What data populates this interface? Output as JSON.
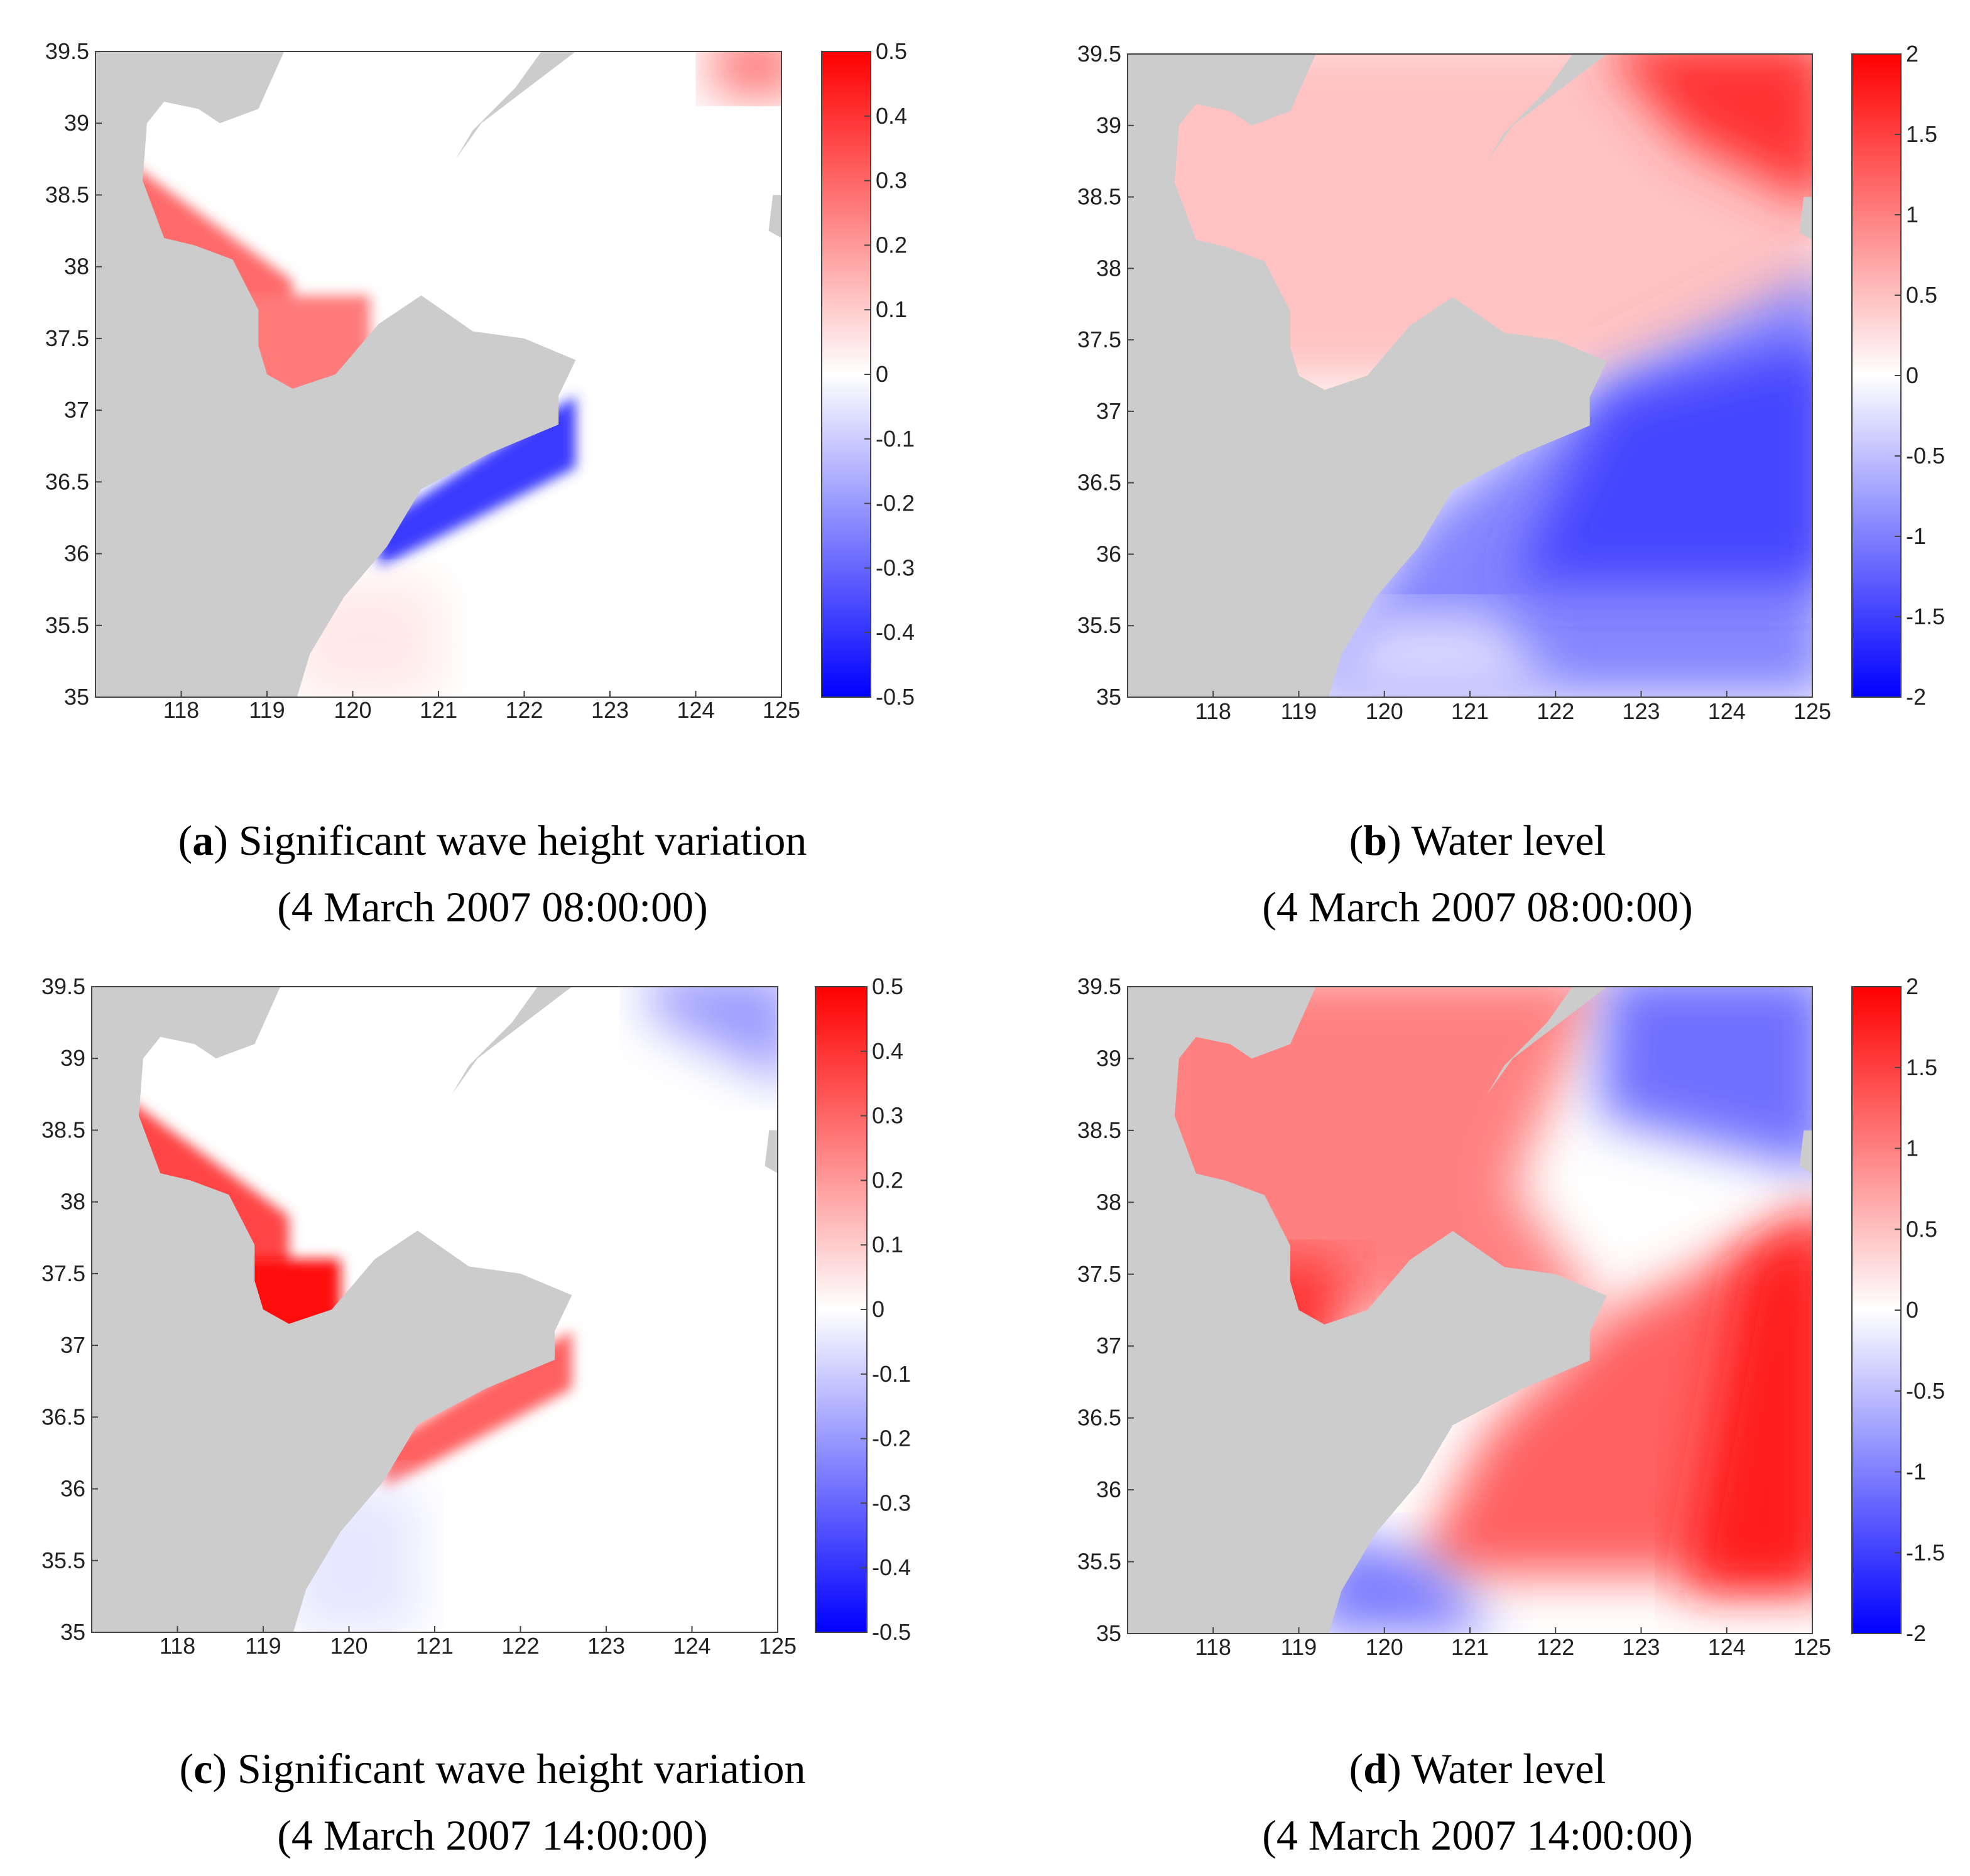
{
  "chart_data": [
    {
      "id": "a",
      "type": "heatmap",
      "variable": "Significant wave height variation",
      "letter": "a",
      "caption_title": "Significant wave height variation",
      "caption_time": "(4 March 2007 08:00:00)",
      "xlim": [
        117,
        125
      ],
      "ylim": [
        35,
        39.5
      ],
      "xticks": [
        118,
        119,
        120,
        121,
        122,
        123,
        124,
        125
      ],
      "xtick_labels": [
        "118",
        "119",
        "120",
        "121",
        "122",
        "123",
        "124",
        "125"
      ],
      "yticks": [
        35,
        35.5,
        36,
        36.5,
        37,
        37.5,
        38,
        38.5,
        39,
        39.5
      ],
      "ytick_labels": [
        "35",
        "35.5",
        "36",
        "36.5",
        "37",
        "37.5",
        "38",
        "38.5",
        "39",
        "39.5"
      ],
      "colorbar": {
        "min": -0.5,
        "max": 0.5,
        "ticks": [
          0.5,
          0.4,
          0.3,
          0.2,
          0.1,
          0,
          -0.1,
          -0.2,
          -0.3,
          -0.4,
          -0.5
        ],
        "tick_labels": [
          "0.5",
          "0.4",
          "0.3",
          "0.2",
          "0.1",
          "0",
          "-0.1",
          "-0.2",
          "-0.3",
          "-0.4",
          "-0.5"
        ],
        "colormap": "blue-white-red"
      },
      "features": [
        {
          "name": "bohai-bay-coast",
          "value": 0.22,
          "desc": "red band along western Bohai coast"
        },
        {
          "name": "laizhou-bay-coast",
          "value": 0.3,
          "desc": "red along Laizhou Bay"
        },
        {
          "name": "shandong-south-coast",
          "value": -0.4,
          "desc": "blue strip along southern Shandong coast"
        },
        {
          "name": "open-water",
          "value": 0.02,
          "desc": "near-zero elsewhere"
        }
      ]
    },
    {
      "id": "b",
      "type": "heatmap",
      "variable": "Water level",
      "letter": "b",
      "caption_title": "Water level",
      "caption_time": "(4 March 2007 08:00:00)",
      "xlim": [
        117,
        125
      ],
      "ylim": [
        35,
        39.5
      ],
      "xticks": [
        118,
        119,
        120,
        121,
        122,
        123,
        124,
        125
      ],
      "xtick_labels": [
        "118",
        "119",
        "120",
        "121",
        "122",
        "123",
        "124",
        "125"
      ],
      "yticks": [
        35,
        35.5,
        36,
        36.5,
        37,
        37.5,
        38,
        38.5,
        39,
        39.5
      ],
      "ytick_labels": [
        "35",
        "35.5",
        "36",
        "36.5",
        "37",
        "37.5",
        "38",
        "38.5",
        "39",
        "39.5"
      ],
      "colorbar": {
        "min": -2,
        "max": 2,
        "ticks": [
          2,
          1.5,
          1,
          0.5,
          0,
          -0.5,
          -1,
          -1.5,
          -2
        ],
        "tick_labels": [
          "2",
          "1.5",
          "1",
          "0.5",
          "0",
          "-0.5",
          "-1",
          "-1.5",
          "-2"
        ],
        "colormap": "blue-white-red"
      },
      "features": [
        {
          "name": "north-east-corner",
          "value": 1.8
        },
        {
          "name": "bohai-sea",
          "value": 0.6
        },
        {
          "name": "yellow-sea-south",
          "value": -1.3
        }
      ]
    },
    {
      "id": "c",
      "type": "heatmap",
      "variable": "Significant wave height variation",
      "letter": "c",
      "caption_title": "Significant wave height variation",
      "caption_time": "(4 March 2007 14:00:00)",
      "xlim": [
        117,
        125
      ],
      "ylim": [
        35,
        39.5
      ],
      "xticks": [
        118,
        119,
        120,
        121,
        122,
        123,
        124,
        125
      ],
      "xtick_labels": [
        "118",
        "119",
        "120",
        "121",
        "122",
        "123",
        "124",
        "125"
      ],
      "yticks": [
        35,
        35.5,
        36,
        36.5,
        37,
        37.5,
        38,
        38.5,
        39,
        39.5
      ],
      "ytick_labels": [
        "35",
        "35.5",
        "36",
        "36.5",
        "37",
        "37.5",
        "38",
        "38.5",
        "39",
        "39.5"
      ],
      "colorbar": {
        "min": -0.5,
        "max": 0.5,
        "ticks": [
          0.5,
          0.4,
          0.3,
          0.2,
          0.1,
          0,
          -0.1,
          -0.2,
          -0.3,
          -0.4,
          -0.5
        ],
        "tick_labels": [
          "0.5",
          "0.4",
          "0.3",
          "0.2",
          "0.1",
          "0",
          "-0.1",
          "-0.2",
          "-0.3",
          "-0.4",
          "-0.5"
        ],
        "colormap": "blue-white-red"
      },
      "features": [
        {
          "name": "bohai-bay-coast",
          "value": 0.35
        },
        {
          "name": "laizhou-bay",
          "value": 0.5
        },
        {
          "name": "shandong-south-coast",
          "value": 0.25
        },
        {
          "name": "north-east-corner",
          "value": -0.2
        }
      ]
    },
    {
      "id": "d",
      "type": "heatmap",
      "variable": "Water level",
      "letter": "d",
      "caption_title": "Water level",
      "caption_time": "(4 March 2007 14:00:00)",
      "xlim": [
        117,
        125
      ],
      "ylim": [
        35,
        39.5
      ],
      "xticks": [
        118,
        119,
        120,
        121,
        122,
        123,
        124,
        125
      ],
      "xtick_labels": [
        "118",
        "119",
        "120",
        "121",
        "122",
        "123",
        "124",
        "125"
      ],
      "yticks": [
        35,
        35.5,
        36,
        36.5,
        37,
        37.5,
        38,
        38.5,
        39,
        39.5
      ],
      "ytick_labels": [
        "35",
        "35.5",
        "36",
        "36.5",
        "37",
        "37.5",
        "38",
        "38.5",
        "39",
        "39.5"
      ],
      "colorbar": {
        "min": -2,
        "max": 2,
        "ticks": [
          2,
          1.5,
          1,
          0.5,
          0,
          -0.5,
          -1,
          -1.5,
          -2
        ],
        "tick_labels": [
          "2",
          "1.5",
          "1",
          "0.5",
          "0",
          "-0.5",
          "-1",
          "-1.5",
          "-2"
        ],
        "colormap": "blue-white-red"
      },
      "features": [
        {
          "name": "bohai-sea",
          "value": 1.0
        },
        {
          "name": "north-east-corner",
          "value": -1.5
        },
        {
          "name": "yellow-sea-east",
          "value": 1.8
        },
        {
          "name": "south-west-corner",
          "value": -1.0
        }
      ]
    }
  ],
  "colors": {
    "land": "#cccccc",
    "positive": "#ff0000",
    "negative": "#0000ff",
    "neutral": "#ffffff"
  }
}
